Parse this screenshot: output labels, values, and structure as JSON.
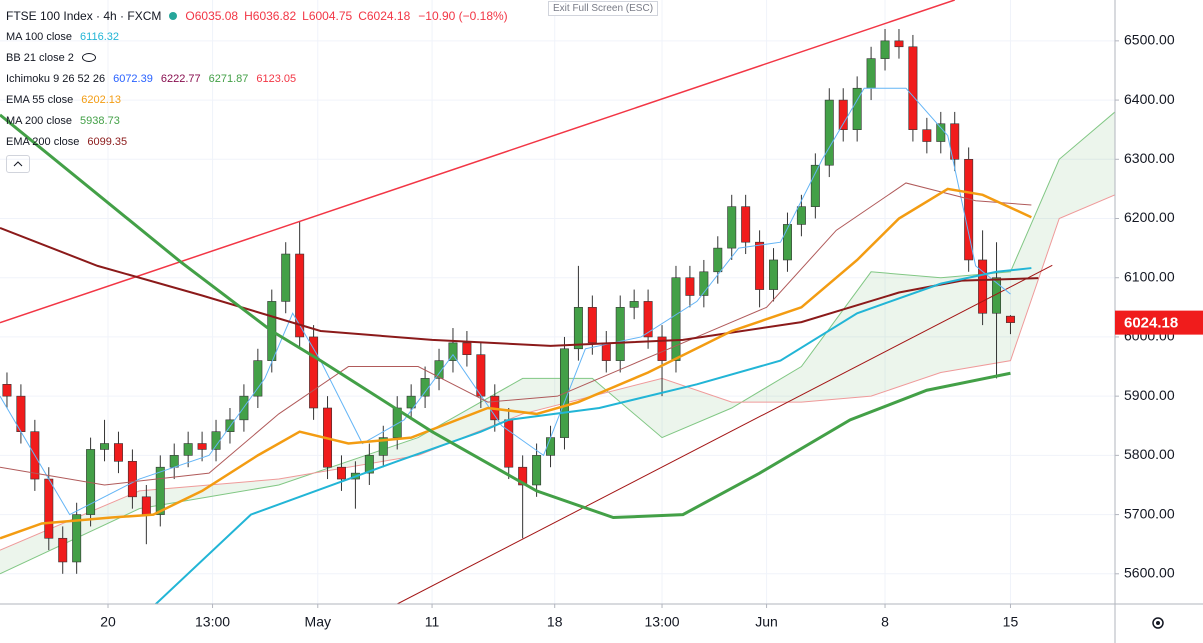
{
  "chart_data": {
    "type": "candlestick",
    "header": {
      "symbol": "FTSE 100 Index · 4h · FXCM",
      "ohlc": [
        "O6035.08",
        "H6036.82",
        "L6004.75",
        "C6024.18"
      ],
      "change": "−10.90 (−0.18%)"
    },
    "button": "Exit Full Screen (ESC)",
    "indicators": [
      {
        "label": "MA 100 close",
        "values": [
          "6116.32"
        ],
        "colors": [
          "#22b5d6"
        ]
      },
      {
        "label": "BB 21 close 2"
      },
      {
        "label": "Ichimoku 9 26 52 26",
        "values": [
          "6072.39",
          "6222.77",
          "6271.87",
          "6123.05"
        ],
        "colors": [
          "#2962ff",
          "#880e4f",
          "#43a047",
          "#f23645"
        ]
      },
      {
        "label": "EMA 55 close",
        "values": [
          "6202.13"
        ],
        "colors": [
          "#f39c12"
        ]
      },
      {
        "label": "MA 200 close",
        "values": [
          "5938.73"
        ],
        "colors": [
          "#43a047"
        ]
      },
      {
        "label": "EMA 200 close",
        "values": [
          "6099.35"
        ],
        "colors": [
          "#8b1a1a"
        ]
      }
    ],
    "up_color": "#43a047",
    "down_color": "#f01c1c",
    "x": [
      1,
      3,
      5,
      7,
      9,
      11,
      13,
      15,
      17,
      19,
      21,
      23,
      25,
      27,
      29,
      31,
      33,
      35,
      37,
      39,
      41,
      43,
      45,
      47,
      49,
      51,
      53,
      55,
      57,
      59,
      61,
      63,
      65,
      67,
      69,
      71,
      73,
      75,
      77,
      79,
      81,
      83,
      85,
      87,
      89,
      91,
      93,
      95,
      97,
      99,
      101,
      103,
      105,
      107,
      109,
      111,
      113,
      115,
      117,
      119,
      121,
      123,
      125,
      127,
      129,
      131,
      133,
      135,
      137,
      139,
      141,
      143,
      145
    ],
    "open": [
      5920,
      5900,
      5840,
      5760,
      5660,
      5620,
      5700,
      5810,
      5820,
      5790,
      5730,
      5700,
      5780,
      5800,
      5820,
      5810,
      5840,
      5860,
      5900,
      5960,
      6060,
      6140,
      6000,
      5880,
      5780,
      5760,
      5770,
      5800,
      5830,
      5880,
      5900,
      5930,
      5960,
      5990,
      5970,
      5900,
      5860,
      5780,
      5750,
      5800,
      5830,
      5980,
      6050,
      5990,
      5960,
      6050,
      6060,
      6000,
      5960,
      6100,
      6070,
      6110,
      6150,
      6220,
      6160,
      6080,
      6130,
      6190,
      6220,
      6290,
      6400,
      6350,
      6420,
      6470,
      6500,
      6490,
      6350,
      6330,
      6360,
      6300,
      6130,
      6040,
      6035.08
    ],
    "high": [
      5940,
      5920,
      5860,
      5780,
      5680,
      5720,
      5830,
      5860,
      5840,
      5810,
      5750,
      5800,
      5820,
      5840,
      5840,
      5860,
      5880,
      5920,
      5980,
      6080,
      6160,
      6195,
      6020,
      5900,
      5800,
      5790,
      5820,
      5850,
      5900,
      5920,
      5950,
      5980,
      6015,
      6010,
      5990,
      5920,
      5880,
      5800,
      5820,
      5850,
      6000,
      6120,
      6070,
      6010,
      6070,
      6080,
      6080,
      6020,
      6120,
      6120,
      6130,
      6170,
      6240,
      6240,
      6180,
      6150,
      6210,
      6240,
      6310,
      6420,
      6420,
      6440,
      6490,
      6520,
      6520,
      6510,
      6370,
      6380,
      6380,
      6320,
      6180,
      6160,
      6036.82
    ],
    "low": [
      5880,
      5820,
      5740,
      5640,
      5600,
      5600,
      5680,
      5790,
      5770,
      5710,
      5650,
      5680,
      5760,
      5780,
      5790,
      5790,
      5820,
      5840,
      5880,
      5940,
      6040,
      5980,
      5860,
      5760,
      5740,
      5710,
      5750,
      5780,
      5810,
      5860,
      5880,
      5910,
      5940,
      5950,
      5880,
      5840,
      5760,
      5660,
      5730,
      5780,
      5810,
      5960,
      5970,
      5940,
      5940,
      6030,
      5980,
      5900,
      5940,
      6050,
      6050,
      6090,
      6130,
      6140,
      6050,
      6060,
      6110,
      6170,
      6200,
      6270,
      6330,
      6330,
      6400,
      6450,
      6470,
      6330,
      6310,
      6310,
      6280,
      6110,
      6020,
      5930,
      6004.75
    ],
    "close": [
      5900,
      5840,
      5760,
      5660,
      5620,
      5700,
      5810,
      5820,
      5790,
      5730,
      5700,
      5780,
      5800,
      5820,
      5810,
      5840,
      5860,
      5900,
      5960,
      6060,
      6140,
      6000,
      5880,
      5780,
      5760,
      5770,
      5800,
      5830,
      5880,
      5900,
      5930,
      5960,
      5990,
      5970,
      5900,
      5860,
      5780,
      5750,
      5800,
      5830,
      5980,
      6050,
      5990,
      5960,
      6050,
      6060,
      6000,
      5960,
      6100,
      6070,
      6110,
      6150,
      6220,
      6160,
      6080,
      6130,
      6190,
      6220,
      6290,
      6400,
      6350,
      6420,
      6470,
      6500,
      6490,
      6350,
      6330,
      6360,
      6300,
      6130,
      6040,
      6100,
      6024.18
    ],
    "cloud": {
      "x": [
        0,
        20,
        40,
        60,
        75,
        85,
        95,
        105,
        115,
        125,
        135,
        145,
        152,
        160
      ],
      "span_a": [
        5600,
        5710,
        5750,
        5830,
        5930,
        5930,
        5830,
        5880,
        5950,
        6110,
        6100,
        6110,
        6300,
        6380
      ],
      "span_b": [
        5640,
        5740,
        5760,
        5800,
        5870,
        5900,
        5930,
        5890,
        5890,
        5900,
        5940,
        5960,
        6200,
        6240
      ],
      "colors": [
        "#81c784",
        "#ef9a9a"
      ],
      "fill": "#43a047"
    },
    "lines": [
      {
        "color": "#f23645",
        "width": 1.5,
        "x": [
          0,
          137
        ],
        "values": [
          6024,
          6569
        ]
      },
      {
        "color": "#a31515",
        "width": 1,
        "x": [
          57,
          151
        ],
        "values": [
          5549,
          6121
        ]
      },
      {
        "color": "#64b5f6",
        "width": 1,
        "x": [
          0,
          10,
          20,
          30,
          38,
          42,
          46,
          52,
          58,
          65,
          72,
          78,
          84,
          92,
          100,
          106,
          112,
          118,
          124,
          130,
          136,
          140,
          145
        ],
        "values": [
          5900,
          5700,
          5760,
          5800,
          5930,
          6040,
          5960,
          5820,
          5860,
          5970,
          5850,
          5800,
          5980,
          6000,
          6060,
          6150,
          6160,
          6300,
          6420,
          6420,
          6340,
          6120,
          6072.39
        ]
      },
      {
        "color": "#b05a5a",
        "width": 1,
        "x": [
          0,
          15,
          30,
          40,
          50,
          60,
          70,
          80,
          90,
          100,
          110,
          120,
          130,
          140,
          148
        ],
        "values": [
          5780,
          5750,
          5770,
          5870,
          5950,
          5950,
          5890,
          5900,
          5950,
          6000,
          6050,
          6180,
          6260,
          6230,
          6222.77
        ]
      },
      {
        "color": "#8b1a1a",
        "width": 2,
        "x": [
          0,
          14,
          29,
          46,
          62,
          79,
          98,
          115,
          129,
          138,
          149
        ],
        "values": [
          6184,
          6120,
          6070,
          6010,
          5995,
          5985,
          5995,
          6025,
          6075,
          6095,
          6099.35
        ]
      },
      {
        "color": "#22b5d6",
        "width": 2,
        "x": [
          22,
          36,
          43,
          57,
          69,
          73,
          86,
          100,
          112,
          123,
          135,
          143,
          148
        ],
        "values": [
          5545,
          5700,
          5730,
          5790,
          5840,
          5860,
          5880,
          5920,
          5960,
          6040,
          6090,
          6110,
          6116.32
        ]
      },
      {
        "color": "#f39c12",
        "width": 2.5,
        "x": [
          0,
          6,
          16,
          22,
          29,
          37,
          43,
          50,
          59,
          70,
          77,
          83,
          93,
          105,
          115,
          123,
          129,
          136,
          141,
          148
        ],
        "values": [
          5660,
          5685,
          5695,
          5700,
          5740,
          5800,
          5840,
          5820,
          5830,
          5880,
          5870,
          5890,
          5940,
          6010,
          6050,
          6130,
          6200,
          6250,
          6240,
          6202.13
        ]
      },
      {
        "color": "#43a047",
        "width": 3,
        "x": [
          0,
          26,
          39,
          46,
          62,
          77,
          88,
          98,
          109,
          122,
          133,
          145
        ],
        "values": [
          6375,
          6126,
          6010,
          5960,
          5840,
          5740,
          5695,
          5700,
          5770,
          5860,
          5910,
          5938.73
        ]
      }
    ],
    "xlim": [
      0,
      160
    ],
    "ylim": [
      5549,
      6569
    ],
    "xticks": [
      {
        "value": 15.5,
        "label": "20"
      },
      {
        "value": 30.5,
        "label": "13:00"
      },
      {
        "value": 45.6,
        "label": "May"
      },
      {
        "value": 62,
        "label": "11"
      },
      {
        "value": 79.6,
        "label": "18"
      },
      {
        "value": 95,
        "label": "13:00"
      },
      {
        "value": 110,
        "label": "Jun"
      },
      {
        "value": 127,
        "label": "8"
      },
      {
        "value": 145,
        "label": "15"
      }
    ],
    "yticks": [
      {
        "value": 5600,
        "label": "5600.00"
      },
      {
        "value": 5700,
        "label": "5700.00"
      },
      {
        "value": 5800,
        "label": "5800.00"
      },
      {
        "value": 5900,
        "label": "5900.00"
      },
      {
        "value": 6000,
        "label": "6000.00"
      },
      {
        "value": 6100,
        "label": "6100.00"
      },
      {
        "value": 6200,
        "label": "6200.00"
      },
      {
        "value": 6300,
        "label": "6300.00"
      },
      {
        "value": 6400,
        "label": "6400.00"
      },
      {
        "value": 6500,
        "label": "6500.00"
      }
    ],
    "grid": true
  }
}
